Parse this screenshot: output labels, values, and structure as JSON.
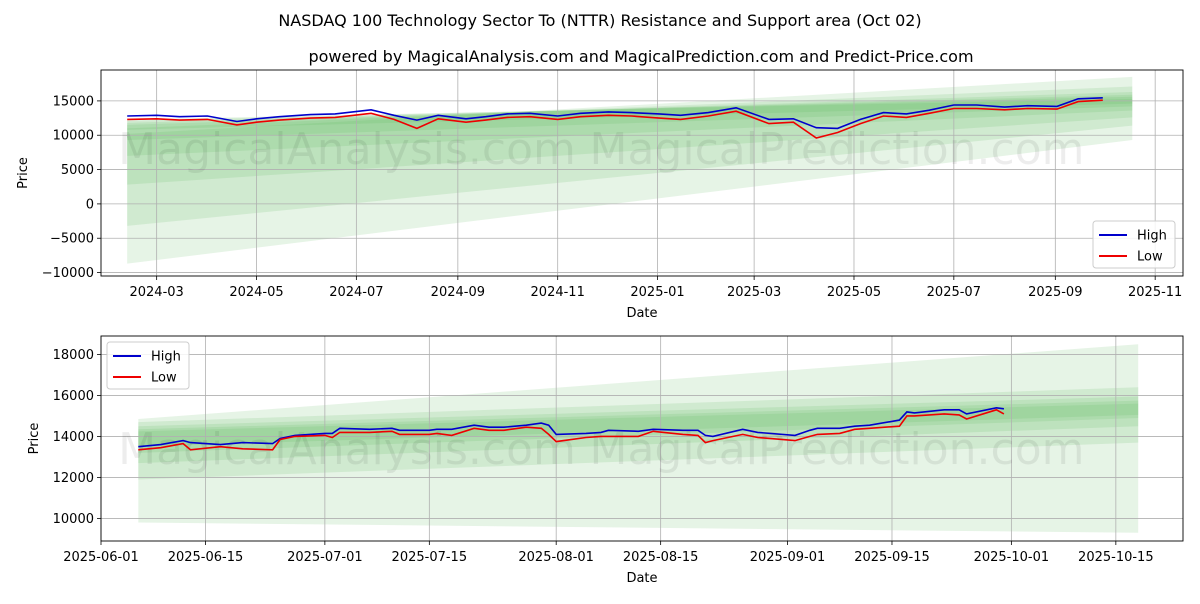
{
  "title": "NASDAQ 100 Technology Sector To (NTTR) Resistance and Support area (Oct 02)",
  "subtitle": "powered by MagicalAnalysis.com and MagicalPrediction.com and Predict-Price.com",
  "watermarks": [
    "MagicalAnalysis.com",
    "MagicalPrediction.com"
  ],
  "colors": {
    "high": "#0000cc",
    "low": "#ee0000",
    "band": "#4caf50",
    "grid": "#b0b0b0"
  },
  "chart_data": [
    {
      "type": "line",
      "xlabel": "Date",
      "ylabel": "Price",
      "xlim": [
        "2024-01-27",
        "2025-11-18"
      ],
      "ylim": [
        -10500,
        19500
      ],
      "x_ticks": [
        "2024-03",
        "2024-05",
        "2024-07",
        "2024-09",
        "2024-11",
        "2025-01",
        "2025-03",
        "2025-05",
        "2025-07",
        "2025-09",
        "2025-11"
      ],
      "y_ticks": [
        -10000,
        -5000,
        0,
        5000,
        10000,
        15000
      ],
      "y_tick_labels": [
        "−10000",
        "−5000",
        "0",
        "5000",
        "10000",
        "15000"
      ],
      "grid": true,
      "legend": {
        "position": "bottom-right",
        "entries": [
          "High",
          "Low"
        ]
      },
      "series": [
        {
          "name": "High",
          "x": [
            "2024-02-12",
            "2024-03-01",
            "2024-03-15",
            "2024-04-01",
            "2024-04-19",
            "2024-05-01",
            "2024-05-15",
            "2024-06-03",
            "2024-06-18",
            "2024-07-10",
            "2024-07-24",
            "2024-08-07",
            "2024-08-20",
            "2024-09-06",
            "2024-09-18",
            "2024-10-01",
            "2024-10-15",
            "2024-11-01",
            "2024-11-15",
            "2024-12-02",
            "2024-12-16",
            "2025-01-02",
            "2025-01-15",
            "2025-02-01",
            "2025-02-18",
            "2025-03-10",
            "2025-03-25",
            "2025-04-08",
            "2025-04-21",
            "2025-05-05",
            "2025-05-19",
            "2025-06-02",
            "2025-06-16",
            "2025-07-01",
            "2025-07-15",
            "2025-08-01",
            "2025-08-15",
            "2025-09-02",
            "2025-09-15",
            "2025-09-30"
          ],
          "values": [
            12800,
            12900,
            12700,
            12800,
            12000,
            12400,
            12700,
            13000,
            13100,
            13700,
            12900,
            12200,
            12900,
            12400,
            12700,
            13100,
            13200,
            12800,
            13200,
            13400,
            13300,
            13100,
            12900,
            13300,
            14000,
            12300,
            12400,
            11100,
            11000,
            12300,
            13300,
            13100,
            13650,
            14400,
            14400,
            14100,
            14300,
            14200,
            15300,
            15450
          ]
        },
        {
          "name": "Low",
          "x": [
            "2024-02-12",
            "2024-03-01",
            "2024-03-15",
            "2024-04-01",
            "2024-04-19",
            "2024-05-01",
            "2024-05-15",
            "2024-06-03",
            "2024-06-18",
            "2024-07-10",
            "2024-07-24",
            "2024-08-07",
            "2024-08-20",
            "2024-09-06",
            "2024-09-18",
            "2024-10-01",
            "2024-10-15",
            "2024-11-01",
            "2024-11-15",
            "2024-12-02",
            "2024-12-16",
            "2025-01-02",
            "2025-01-15",
            "2025-02-01",
            "2025-02-18",
            "2025-03-10",
            "2025-03-25",
            "2025-04-08",
            "2025-04-21",
            "2025-05-05",
            "2025-05-19",
            "2025-06-02",
            "2025-06-16",
            "2025-07-01",
            "2025-07-15",
            "2025-08-01",
            "2025-08-15",
            "2025-09-02",
            "2025-09-15",
            "2025-09-30"
          ],
          "values": [
            12300,
            12400,
            12200,
            12300,
            11500,
            11900,
            12200,
            12500,
            12600,
            13200,
            12300,
            11000,
            12400,
            11900,
            12200,
            12600,
            12700,
            12300,
            12700,
            12900,
            12800,
            12500,
            12300,
            12800,
            13500,
            11700,
            11900,
            9600,
            10400,
            11700,
            12800,
            12600,
            13200,
            13900,
            13900,
            13700,
            13900,
            13800,
            14900,
            15100
          ]
        }
      ],
      "bands": [
        {
          "x": [
            "2024-02-12",
            "2025-10-18"
          ],
          "lower": [
            -8700,
            9300
          ],
          "upper": [
            10200,
            18500
          ]
        },
        {
          "x": [
            "2024-02-12",
            "2025-10-18"
          ],
          "lower": [
            -3200,
            11400
          ],
          "upper": [
            11000,
            17100
          ]
        },
        {
          "x": [
            "2024-02-12",
            "2025-10-18"
          ],
          "lower": [
            2800,
            12600
          ],
          "upper": [
            11500,
            16300
          ]
        },
        {
          "x": [
            "2024-02-12",
            "2025-10-18"
          ],
          "lower": [
            7000,
            13600
          ],
          "upper": [
            11800,
            15900
          ]
        },
        {
          "x": [
            "2024-02-12",
            "2025-10-18"
          ],
          "lower": [
            9300,
            14200
          ],
          "upper": [
            12100,
            15600
          ]
        },
        {
          "x": [
            "2024-02-12",
            "2025-10-18"
          ],
          "lower": [
            10800,
            14600
          ],
          "upper": [
            12300,
            15300
          ]
        }
      ]
    },
    {
      "type": "line",
      "xlabel": "Date",
      "ylabel": "Price",
      "xlim": [
        "2025-06-01",
        "2025-10-24"
      ],
      "ylim": [
        8900,
        18900
      ],
      "x_ticks": [
        "2025-06-01",
        "2025-06-15",
        "2025-07-01",
        "2025-07-15",
        "2025-08-01",
        "2025-08-15",
        "2025-09-01",
        "2025-09-15",
        "2025-10-01",
        "2025-10-15"
      ],
      "y_ticks": [
        10000,
        12000,
        14000,
        16000,
        18000
      ],
      "y_tick_labels": [
        "10000",
        "12000",
        "14000",
        "16000",
        "18000"
      ],
      "grid": true,
      "legend": {
        "position": "top-left",
        "entries": [
          "High",
          "Low"
        ]
      },
      "series": [
        {
          "name": "High",
          "x": [
            "2025-06-06",
            "2025-06-09",
            "2025-06-12",
            "2025-06-13",
            "2025-06-17",
            "2025-06-20",
            "2025-06-24",
            "2025-06-25",
            "2025-06-27",
            "2025-07-01",
            "2025-07-02",
            "2025-07-03",
            "2025-07-07",
            "2025-07-10",
            "2025-07-11",
            "2025-07-15",
            "2025-07-16",
            "2025-07-18",
            "2025-07-21",
            "2025-07-23",
            "2025-07-25",
            "2025-07-28",
            "2025-07-30",
            "2025-07-31",
            "2025-08-01",
            "2025-08-05",
            "2025-08-07",
            "2025-08-08",
            "2025-08-12",
            "2025-08-14",
            "2025-08-18",
            "2025-08-20",
            "2025-08-21",
            "2025-08-22",
            "2025-08-26",
            "2025-08-28",
            "2025-09-02",
            "2025-09-04",
            "2025-09-05",
            "2025-09-08",
            "2025-09-10",
            "2025-09-12",
            "2025-09-16",
            "2025-09-17",
            "2025-09-18",
            "2025-09-22",
            "2025-09-24",
            "2025-09-25",
            "2025-09-29",
            "2025-09-30"
          ],
          "values": [
            13500,
            13600,
            13800,
            13700,
            13600,
            13700,
            13650,
            13900,
            14050,
            14150,
            14150,
            14400,
            14350,
            14400,
            14300,
            14300,
            14350,
            14350,
            14550,
            14450,
            14450,
            14550,
            14650,
            14550,
            14100,
            14150,
            14200,
            14300,
            14250,
            14350,
            14300,
            14300,
            14050,
            14000,
            14350,
            14200,
            14050,
            14300,
            14400,
            14400,
            14500,
            14550,
            14800,
            15200,
            15150,
            15300,
            15300,
            15100,
            15400,
            15350
          ]
        },
        {
          "name": "Low",
          "x": [
            "2025-06-06",
            "2025-06-09",
            "2025-06-12",
            "2025-06-13",
            "2025-06-17",
            "2025-06-20",
            "2025-06-24",
            "2025-06-25",
            "2025-06-27",
            "2025-07-01",
            "2025-07-02",
            "2025-07-03",
            "2025-07-07",
            "2025-07-10",
            "2025-07-11",
            "2025-07-15",
            "2025-07-16",
            "2025-07-18",
            "2025-07-21",
            "2025-07-23",
            "2025-07-25",
            "2025-07-28",
            "2025-07-30",
            "2025-07-31",
            "2025-08-01",
            "2025-08-05",
            "2025-08-07",
            "2025-08-08",
            "2025-08-12",
            "2025-08-14",
            "2025-08-18",
            "2025-08-20",
            "2025-08-21",
            "2025-08-22",
            "2025-08-26",
            "2025-08-28",
            "2025-09-02",
            "2025-09-04",
            "2025-09-05",
            "2025-09-08",
            "2025-09-10",
            "2025-09-12",
            "2025-09-16",
            "2025-09-17",
            "2025-09-18",
            "2025-09-22",
            "2025-09-24",
            "2025-09-25",
            "2025-09-29",
            "2025-09-30"
          ],
          "values": [
            13350,
            13450,
            13650,
            13350,
            13500,
            13400,
            13350,
            13850,
            14000,
            14050,
            13950,
            14200,
            14200,
            14250,
            14100,
            14100,
            14150,
            14050,
            14400,
            14300,
            14300,
            14450,
            14400,
            14100,
            13750,
            13950,
            14000,
            14000,
            14000,
            14250,
            14100,
            14050,
            13700,
            13800,
            14100,
            13950,
            13800,
            14000,
            14100,
            14150,
            14350,
            14400,
            14500,
            15000,
            15000,
            15100,
            15050,
            14850,
            15300,
            15100
          ]
        }
      ],
      "bands": [
        {
          "x": [
            "2025-06-06",
            "2025-10-18"
          ],
          "lower": [
            9800,
            9300
          ],
          "upper": [
            14850,
            18500
          ]
        },
        {
          "x": [
            "2025-06-06",
            "2025-10-18"
          ],
          "lower": [
            11900,
            13700
          ],
          "upper": [
            14700,
            16400
          ]
        },
        {
          "x": [
            "2025-06-06",
            "2025-10-18"
          ],
          "lower": [
            12700,
            14500
          ],
          "upper": [
            14500,
            15950
          ]
        },
        {
          "x": [
            "2025-06-06",
            "2025-10-18"
          ],
          "lower": [
            13200,
            14900
          ],
          "upper": [
            14350,
            15750
          ]
        },
        {
          "x": [
            "2025-06-06",
            "2025-10-18"
          ],
          "lower": [
            13500,
            15050
          ],
          "upper": [
            14250,
            15600
          ]
        }
      ]
    }
  ]
}
